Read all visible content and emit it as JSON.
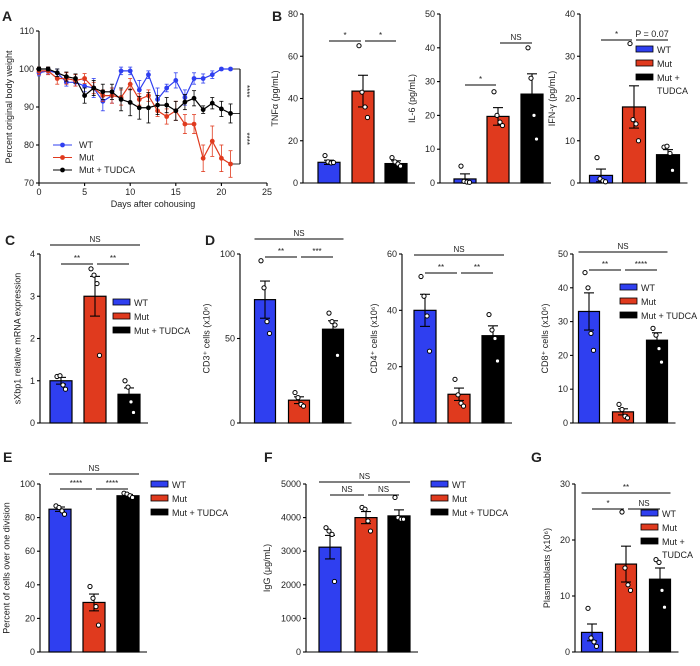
{
  "colors": {
    "WT": "#2f3ff0",
    "Mut": "#e03a1e",
    "Mut + TUDCA": "#000000"
  },
  "legend": [
    "WT",
    "Mut",
    "Mut + TUDCA"
  ],
  "chart_data": [
    {
      "panel": "A",
      "type": "line",
      "xlabel": "Days after cohousing",
      "ylabel": "Percent original body weight",
      "xlim": [
        0,
        25
      ],
      "ylim": [
        70,
        110
      ],
      "xticks": [
        "0",
        "5",
        "10",
        "15",
        "20",
        "25"
      ],
      "yticks": [
        "70",
        "80",
        "90",
        "100",
        "110"
      ],
      "legend_placement": "bottom-left",
      "x": [
        0,
        1,
        2,
        3,
        4,
        5,
        6,
        7,
        8,
        9,
        10,
        11,
        12,
        13,
        14,
        15,
        16,
        17,
        18,
        19,
        20,
        21
      ],
      "series": [
        {
          "name": "WT",
          "values": [
            99,
            99.5,
            99,
            96.5,
            96.5,
            95.5,
            95,
            91.5,
            93,
            99.5,
            99.5,
            94.5,
            98.5,
            92,
            95,
            97,
            92.5,
            97.5,
            97.5,
            98.5,
            100,
            100
          ],
          "err": [
            0.8,
            0.8,
            1,
            1,
            1,
            1.5,
            2.5,
            2.5,
            2,
            1,
            1,
            2.5,
            1,
            3,
            1,
            2,
            2,
            1.5,
            1.2,
            1,
            0.3,
            0.3
          ]
        },
        {
          "name": "Mut",
          "values": [
            99.5,
            99.5,
            97.5,
            97.5,
            97,
            97.5,
            95,
            93,
            93,
            92.5,
            96,
            92,
            93,
            89,
            87.5,
            89,
            85.5,
            85.5,
            76.5,
            81,
            76.5,
            75
          ],
          "err": [
            1,
            1,
            1.5,
            1.5,
            1.5,
            1.3,
            1.5,
            1.5,
            2,
            2,
            1.5,
            1.5,
            1.5,
            1.5,
            2,
            2.5,
            2.5,
            2.5,
            3.5,
            4,
            3.5,
            3.5
          ]
        },
        {
          "name": "Mut + TUDCA",
          "values": [
            100,
            100,
            99,
            98,
            97.5,
            93,
            95,
            94,
            94,
            92,
            91.2,
            89.8,
            89.8,
            90.5,
            90.5,
            89,
            91.3,
            92.3,
            89.3,
            91,
            89.5,
            88.3
          ],
          "err": [
            0.5,
            0.5,
            1,
            1.2,
            1.2,
            2,
            2,
            2,
            2,
            3,
            3.5,
            3,
            4,
            2.5,
            2,
            2.5,
            2,
            2,
            1,
            1.5,
            2,
            2.5
          ]
        }
      ],
      "sig": [
        {
          "from": 0,
          "to": 2,
          "label": "****"
        },
        {
          "from": 2,
          "to": 1,
          "label": "****"
        }
      ]
    },
    {
      "panel": "B",
      "id": "B1",
      "type": "bar",
      "ylabel": "TNFα (pg/mL)",
      "ylim": [
        0,
        80
      ],
      "yticks": [
        "0",
        "20",
        "40",
        "60",
        "80"
      ],
      "categories": [
        "WT",
        "Mut",
        "Mut + TUDCA"
      ],
      "values": [
        9.8,
        43.5,
        9.2
      ],
      "sem": [
        1,
        7.5,
        1.3
      ],
      "points": [
        [
          13,
          10,
          9.5,
          9.7
        ],
        [
          65,
          43,
          36,
          31
        ],
        [
          12,
          10,
          9,
          8
        ]
      ],
      "sig": [
        {
          "from": 0,
          "to": 1,
          "label": "*"
        },
        {
          "from": 1,
          "to": 2,
          "label": "*"
        }
      ]
    },
    {
      "panel": "",
      "id": "B2",
      "type": "bar",
      "ylabel": "IL-6 (pg/mL)",
      "ylim": [
        0,
        50
      ],
      "yticks": [
        "0",
        "10",
        "20",
        "30",
        "40",
        "50"
      ],
      "categories": [
        "WT",
        "Mut",
        "Mut + TUDCA"
      ],
      "values": [
        1.2,
        19.7,
        26.3
      ],
      "sem": [
        1.5,
        2.6,
        6
      ],
      "points": [
        [
          5,
          0.5,
          0.3,
          0.2
        ],
        [
          27,
          20,
          18,
          17
        ],
        [
          40,
          31,
          20,
          13
        ]
      ],
      "sig": [
        {
          "from": 0,
          "to": 1,
          "label": "*"
        },
        {
          "from": 1,
          "to": 2,
          "label": "NS"
        }
      ]
    },
    {
      "panel": "",
      "id": "B3",
      "type": "bar",
      "ylabel": "IFN-γ (pg/mL)",
      "ylim": [
        0,
        40
      ],
      "yticks": [
        "0",
        "10",
        "20",
        "30",
        "40"
      ],
      "categories": [
        "WT",
        "Mut",
        "Mut + TUDCA"
      ],
      "values": [
        1.8,
        18,
        6.7
      ],
      "sem": [
        1.5,
        5,
        1.2
      ],
      "points": [
        [
          6,
          1,
          0.5,
          0.3
        ],
        [
          33,
          15,
          14,
          10
        ],
        [
          8.5,
          8.7,
          7,
          3
        ]
      ],
      "sig": [
        {
          "from": 0,
          "to": 1,
          "label": "*"
        },
        {
          "from": 1,
          "to": 2,
          "label": "P = 0.07"
        }
      ],
      "legend": true
    },
    {
      "panel": "C",
      "id": "C",
      "type": "bar",
      "ylabel": "sXbp1 relative mRNA expression",
      "ylim": [
        0,
        4
      ],
      "yticks": [
        "0",
        "1",
        "2",
        "3",
        "4"
      ],
      "categories": [
        "WT",
        "Mut",
        "Mut + TUDCA"
      ],
      "values": [
        1.0,
        3.0,
        0.68
      ],
      "sem": [
        0.08,
        0.47,
        0.15
      ],
      "points": [
        [
          1.1,
          1.12,
          0.9,
          0.8
        ],
        [
          3.65,
          3.5,
          3.3,
          1.6
        ],
        [
          1.0,
          0.85,
          0.5,
          0.25
        ]
      ],
      "sig": [
        {
          "from": 0,
          "to": 1,
          "label": "**"
        },
        {
          "from": 1,
          "to": 2,
          "label": "**"
        },
        {
          "from": 0,
          "to": 2,
          "label": "NS"
        }
      ],
      "legend": true
    },
    {
      "panel": "D",
      "id": "D1",
      "type": "bar",
      "ylabel": "CD3⁺ cells (x10⁶)",
      "ylim": [
        0,
        100
      ],
      "yticks": [
        "0",
        "50",
        "100"
      ],
      "categories": [
        "WT",
        "Mut",
        "Mut + TUDCA"
      ],
      "values": [
        73,
        13.5,
        55.5
      ],
      "sem": [
        11,
        2,
        5
      ],
      "points": [
        [
          96,
          80,
          60,
          53
        ],
        [
          18,
          15,
          11,
          10
        ],
        [
          65,
          60,
          58,
          40
        ]
      ],
      "sig": [
        {
          "from": 0,
          "to": 1,
          "label": "**"
        },
        {
          "from": 1,
          "to": 2,
          "label": "***"
        },
        {
          "from": 0,
          "to": 2,
          "label": "NS"
        }
      ]
    },
    {
      "panel": "",
      "id": "D2",
      "type": "bar",
      "ylabel": "CD4⁺ cells (x10⁶)",
      "ylim": [
        0,
        60
      ],
      "yticks": [
        "0",
        "20",
        "40",
        "60"
      ],
      "categories": [
        "WT",
        "Mut",
        "Mut + TUDCA"
      ],
      "values": [
        40,
        10.2,
        31
      ],
      "sem": [
        5.7,
        2.2,
        3.5
      ],
      "points": [
        [
          52,
          45,
          38,
          25.5
        ],
        [
          15.5,
          10,
          7,
          6
        ],
        [
          38.5,
          33,
          30,
          22
        ]
      ],
      "sig": [
        {
          "from": 0,
          "to": 1,
          "label": "**"
        },
        {
          "from": 1,
          "to": 2,
          "label": "**"
        },
        {
          "from": 0,
          "to": 2,
          "label": "NS"
        }
      ]
    },
    {
      "panel": "",
      "id": "D3",
      "type": "bar",
      "ylabel": "CD8⁺ cells (x10⁶)",
      "ylim": [
        0,
        50
      ],
      "yticks": [
        "0",
        "10",
        "20",
        "30",
        "40",
        "50"
      ],
      "categories": [
        "WT",
        "Mut",
        "Mut + TUDCA"
      ],
      "values": [
        33,
        3.3,
        24.5
      ],
      "sem": [
        5.5,
        0.9,
        2.2
      ],
      "points": [
        [
          44.5,
          40,
          26.5,
          21.5
        ],
        [
          5.5,
          4,
          2,
          1.5
        ],
        [
          28,
          26,
          22,
          18
        ]
      ],
      "sig": [
        {
          "from": 0,
          "to": 1,
          "label": "**"
        },
        {
          "from": 1,
          "to": 2,
          "label": "****"
        },
        {
          "from": 0,
          "to": 2,
          "label": "NS"
        }
      ],
      "legend": true
    },
    {
      "panel": "E",
      "id": "E",
      "type": "bar",
      "ylabel": "Percent of cells over one division",
      "ylim": [
        0,
        100
      ],
      "yticks": [
        "0",
        "20",
        "40",
        "60",
        "80",
        "100"
      ],
      "categories": [
        "WT",
        "Mut",
        "Mut + TUDCA"
      ],
      "values": [
        85,
        29.5,
        93
      ],
      "sem": [
        1.3,
        5,
        0.8
      ],
      "points": [
        [
          87,
          86,
          84,
          82
        ],
        [
          39,
          32,
          27,
          16
        ],
        [
          94.5,
          94,
          93,
          92
        ]
      ],
      "sig": [
        {
          "from": 0,
          "to": 1,
          "label": "****"
        },
        {
          "from": 1,
          "to": 2,
          "label": "****"
        },
        {
          "from": 0,
          "to": 2,
          "label": "NS"
        }
      ],
      "legend": true
    },
    {
      "panel": "F",
      "id": "F",
      "type": "bar",
      "ylabel": "IgG (μg/mL)",
      "ylim": [
        0,
        5000
      ],
      "yticks": [
        "0",
        "1000",
        "2000",
        "3000",
        "4000",
        "5000"
      ],
      "categories": [
        "WT",
        "Mut",
        "Mut + TUDCA"
      ],
      "values": [
        3120,
        4000,
        4050
      ],
      "sem": [
        350,
        180,
        180
      ],
      "points": [
        [
          3700,
          3600,
          3500,
          2100
        ],
        [
          4300,
          4250,
          3900,
          3600
        ],
        [
          4600,
          4000,
          3950,
          3950
        ]
      ],
      "sig": [
        {
          "from": 0,
          "to": 1,
          "label": "NS"
        },
        {
          "from": 1,
          "to": 2,
          "label": "NS"
        },
        {
          "from": 0,
          "to": 2,
          "label": "NS"
        }
      ],
      "legend": true
    },
    {
      "panel": "G",
      "id": "G",
      "type": "bar",
      "ylabel": "Plasmablasts (x10⁶)",
      "ylim": [
        0,
        30
      ],
      "yticks": [
        "0",
        "10",
        "20",
        "30"
      ],
      "categories": [
        "WT",
        "Mut",
        "Mut + TUDCA"
      ],
      "values": [
        3.5,
        15.7,
        13
      ],
      "sem": [
        1.5,
        3.2,
        2
      ],
      "points": [
        [
          7.8,
          2.5,
          1.8,
          1
        ],
        [
          25,
          15,
          12,
          11
        ],
        [
          16.5,
          16,
          11,
          8
        ]
      ],
      "sig": [
        {
          "from": 0,
          "to": 1,
          "label": "*"
        },
        {
          "from": 1,
          "to": 2,
          "label": "NS"
        },
        {
          "from": 0,
          "to": 2,
          "label": "**"
        }
      ],
      "legend": true
    }
  ]
}
